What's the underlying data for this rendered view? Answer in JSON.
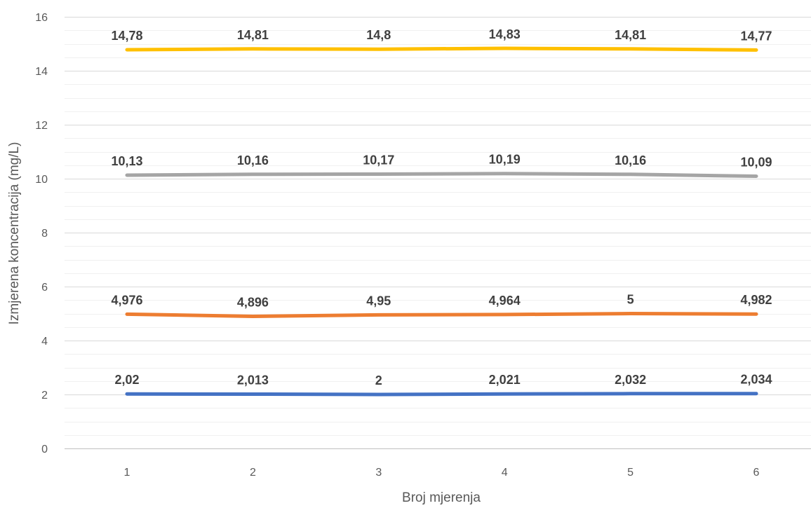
{
  "chart_data": {
    "type": "line",
    "title": "",
    "xlabel": "Broj mjerenja",
    "ylabel": "Izmjerena koncentracija (mg/L)",
    "x": [
      1,
      2,
      3,
      4,
      5,
      6
    ],
    "x_tick_labels": [
      "1",
      "2",
      "3",
      "4",
      "5",
      "6"
    ],
    "ylim": [
      0,
      16
    ],
    "y_ticks": [
      0,
      2,
      4,
      6,
      8,
      10,
      12,
      14,
      16
    ],
    "y_tick_labels": [
      "0",
      "2",
      "4",
      "6",
      "8",
      "10",
      "12",
      "14",
      "16"
    ],
    "grid": {
      "major": true,
      "minor": true
    },
    "legend": "none",
    "series": [
      {
        "color": "#4472C4",
        "values": [
          2.02,
          2.013,
          2.0,
          2.021,
          2.032,
          2.034
        ],
        "labels": [
          "2,02",
          "2,013",
          "2",
          "2,021",
          "2,032",
          "2,034"
        ]
      },
      {
        "color": "#ED7D31",
        "values": [
          4.976,
          4.896,
          4.95,
          4.964,
          5.0,
          4.982
        ],
        "labels": [
          "4,976",
          "4,896",
          "4,95",
          "4,964",
          "5",
          "4,982"
        ]
      },
      {
        "color": "#A5A5A5",
        "values": [
          10.13,
          10.16,
          10.17,
          10.19,
          10.16,
          10.09
        ],
        "labels": [
          "10,13",
          "10,16",
          "10,17",
          "10,19",
          "10,16",
          "10,09"
        ]
      },
      {
        "color": "#FFC000",
        "values": [
          14.78,
          14.81,
          14.8,
          14.83,
          14.81,
          14.77
        ],
        "labels": [
          "14,78",
          "14,81",
          "14,8",
          "14,83",
          "14,81",
          "14,77"
        ]
      }
    ]
  }
}
